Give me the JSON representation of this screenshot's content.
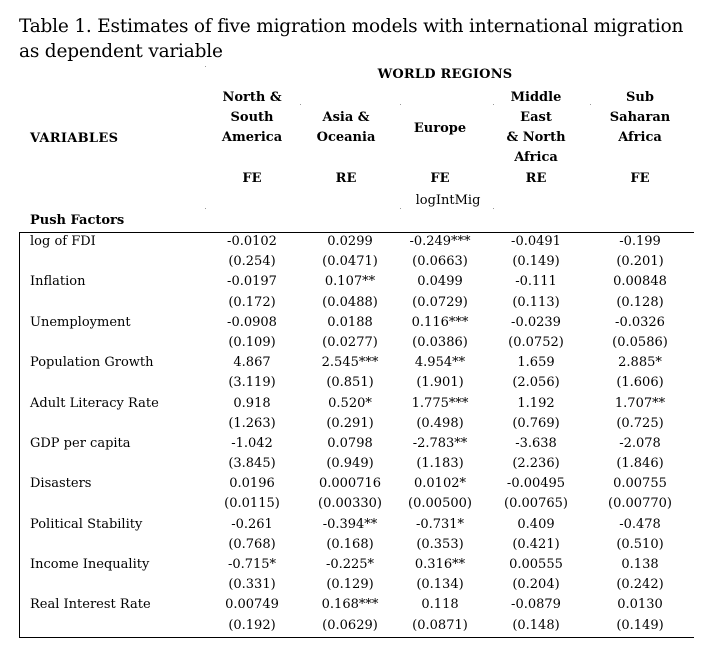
{
  "caption": "Table 1. Estimates of five migration models with international migration as dependent variable",
  "region_title": "WORLD REGIONS",
  "variables_label": "VARIABLES",
  "columns": [
    {
      "lines": [
        "North &",
        "South",
        "America"
      ],
      "model": "FE"
    },
    {
      "lines": [
        "Asia &",
        "Oceania"
      ],
      "model": "RE"
    },
    {
      "lines": [
        "Europe"
      ],
      "model": "FE"
    },
    {
      "lines": [
        "Middle",
        "East",
        "& North",
        "Africa"
      ],
      "model": "RE"
    },
    {
      "lines": [
        "Sub",
        "Saharan",
        "Africa"
      ],
      "model": "FE"
    }
  ],
  "dependent_variable": "logIntMig",
  "section_label": "Push Factors",
  "rows": [
    {
      "name": "log of FDI",
      "coef": [
        "-0.0102",
        "0.0299",
        "-0.249***",
        "-0.0491",
        "-0.199"
      ],
      "se": [
        "(0.254)",
        "(0.0471)",
        "(0.0663)",
        "(0.149)",
        "(0.201)"
      ]
    },
    {
      "name": "Inflation",
      "coef": [
        "-0.0197",
        "0.107**",
        "0.0499",
        "-0.111",
        "0.00848"
      ],
      "se": [
        "(0.172)",
        "(0.0488)",
        "(0.0729)",
        "(0.113)",
        "(0.128)"
      ]
    },
    {
      "name": "Unemployment",
      "coef": [
        "-0.0908",
        "0.0188",
        "0.116***",
        "-0.0239",
        "-0.0326"
      ],
      "se": [
        "(0.109)",
        "(0.0277)",
        "(0.0386)",
        "(0.0752)",
        "(0.0586)"
      ]
    },
    {
      "name": "Population Growth",
      "coef": [
        "4.867",
        "2.545***",
        "4.954**",
        "1.659",
        "2.885*"
      ],
      "se": [
        "(3.119)",
        "(0.851)",
        "(1.901)",
        "(2.056)",
        "(1.606)"
      ]
    },
    {
      "name": "Adult Literacy Rate",
      "coef": [
        "0.918",
        "0.520*",
        "1.775***",
        "1.192",
        "1.707**"
      ],
      "se": [
        "(1.263)",
        "(0.291)",
        "(0.498)",
        "(0.769)",
        "(0.725)"
      ]
    },
    {
      "name": "GDP per capita",
      "coef": [
        "-1.042",
        "0.0798",
        "-2.783**",
        "-3.638",
        "-2.078"
      ],
      "se": [
        "(3.845)",
        "(0.949)",
        "(1.183)",
        "(2.236)",
        "(1.846)"
      ]
    },
    {
      "name": "Disasters",
      "coef": [
        "0.0196",
        "0.000716",
        "0.0102*",
        "-0.00495",
        "0.00755"
      ],
      "se": [
        "(0.0115)",
        "(0.00330)",
        "(0.00500)",
        "(0.00765)",
        "(0.00770)"
      ]
    },
    {
      "name": "Political Stability",
      "coef": [
        "-0.261",
        "-0.394**",
        "-0.731*",
        "0.409",
        "-0.478"
      ],
      "se": [
        "(0.768)",
        "(0.168)",
        "(0.353)",
        "(0.421)",
        "(0.510)"
      ]
    },
    {
      "name": "Income Inequality",
      "coef": [
        "-0.715*",
        "-0.225*",
        "0.316**",
        "0.00555",
        "0.138"
      ],
      "se": [
        "(0.331)",
        "(0.129)",
        "(0.134)",
        "(0.204)",
        "(0.242)"
      ]
    },
    {
      "name": "Real Interest Rate",
      "coef": [
        "0.00749",
        "0.168***",
        "0.118",
        "-0.0879",
        "0.0130"
      ],
      "se": [
        "(0.192)",
        "(0.0629)",
        "(0.0871)",
        "(0.148)",
        "(0.149)"
      ]
    }
  ]
}
